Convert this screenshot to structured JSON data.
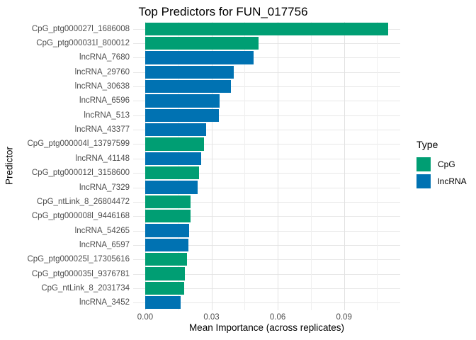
{
  "title": "Top Predictors for FUN_017756",
  "x_axis": {
    "title": "Mean Importance (across replicates)",
    "ticks": [
      {
        "label": "0.00",
        "value": 0
      },
      {
        "label": "0.03",
        "value": 0.03
      },
      {
        "label": "0.06",
        "value": 0.06
      },
      {
        "label": "0.09",
        "value": 0.09
      }
    ],
    "minor_ticks": [
      0.015,
      0.045,
      0.075,
      0.105
    ],
    "domain": [
      -0.0055,
      0.1155
    ]
  },
  "y_axis": {
    "title": "Predictor"
  },
  "legend": {
    "title": "Type",
    "position": "right",
    "items": [
      {
        "label": "CpG",
        "color": "#009E73"
      },
      {
        "label": "lncRNA",
        "color": "#0072B2"
      }
    ]
  },
  "colors": {
    "CpG": "#009E73",
    "lncRNA": "#0072B2",
    "grid_major": "#E2E2E2",
    "grid_minor": "#EFEFEF",
    "axis_text": "#4D4D4D",
    "background": "#FFFFFF"
  },
  "chart_data": {
    "type": "bar",
    "orientation": "horizontal",
    "title": "Top Predictors for FUN_017756",
    "xlabel": "Mean Importance (across replicates)",
    "ylabel": "Predictor",
    "xlim": [
      0,
      0.1155
    ],
    "x_ticks": [
      0,
      0.03,
      0.06,
      0.09
    ],
    "grid": true,
    "legend_position": "right",
    "categories": [
      "CpG_ptg000027l_1686008",
      "CpG_ptg000031l_800012",
      "lncRNA_7680",
      "lncRNA_29760",
      "lncRNA_30638",
      "lncRNA_6596",
      "lncRNA_513",
      "lncRNA_43377",
      "CpG_ptg000004l_13797599",
      "lncRNA_41148",
      "CpG_ptg000012l_3158600",
      "lncRNA_7329",
      "CpG_ntLink_8_26804472",
      "CpG_ptg000008l_9446168",
      "lncRNA_54265",
      "lncRNA_6597",
      "CpG_ptg000025l_17305616",
      "CpG_ptg000035l_9376781",
      "CpG_ntLink_8_2031734",
      "lncRNA_3452"
    ],
    "values": [
      0.1101,
      0.0514,
      0.0492,
      0.0401,
      0.0389,
      0.0337,
      0.0334,
      0.0275,
      0.0265,
      0.0253,
      0.0243,
      0.0237,
      0.0205,
      0.0204,
      0.0199,
      0.0196,
      0.0189,
      0.018,
      0.0176,
      0.016
    ],
    "groups": [
      "CpG",
      "CpG",
      "lncRNA",
      "lncRNA",
      "lncRNA",
      "lncRNA",
      "lncRNA",
      "lncRNA",
      "CpG",
      "lncRNA",
      "CpG",
      "lncRNA",
      "CpG",
      "CpG",
      "lncRNA",
      "lncRNA",
      "CpG",
      "CpG",
      "CpG",
      "lncRNA"
    ]
  }
}
